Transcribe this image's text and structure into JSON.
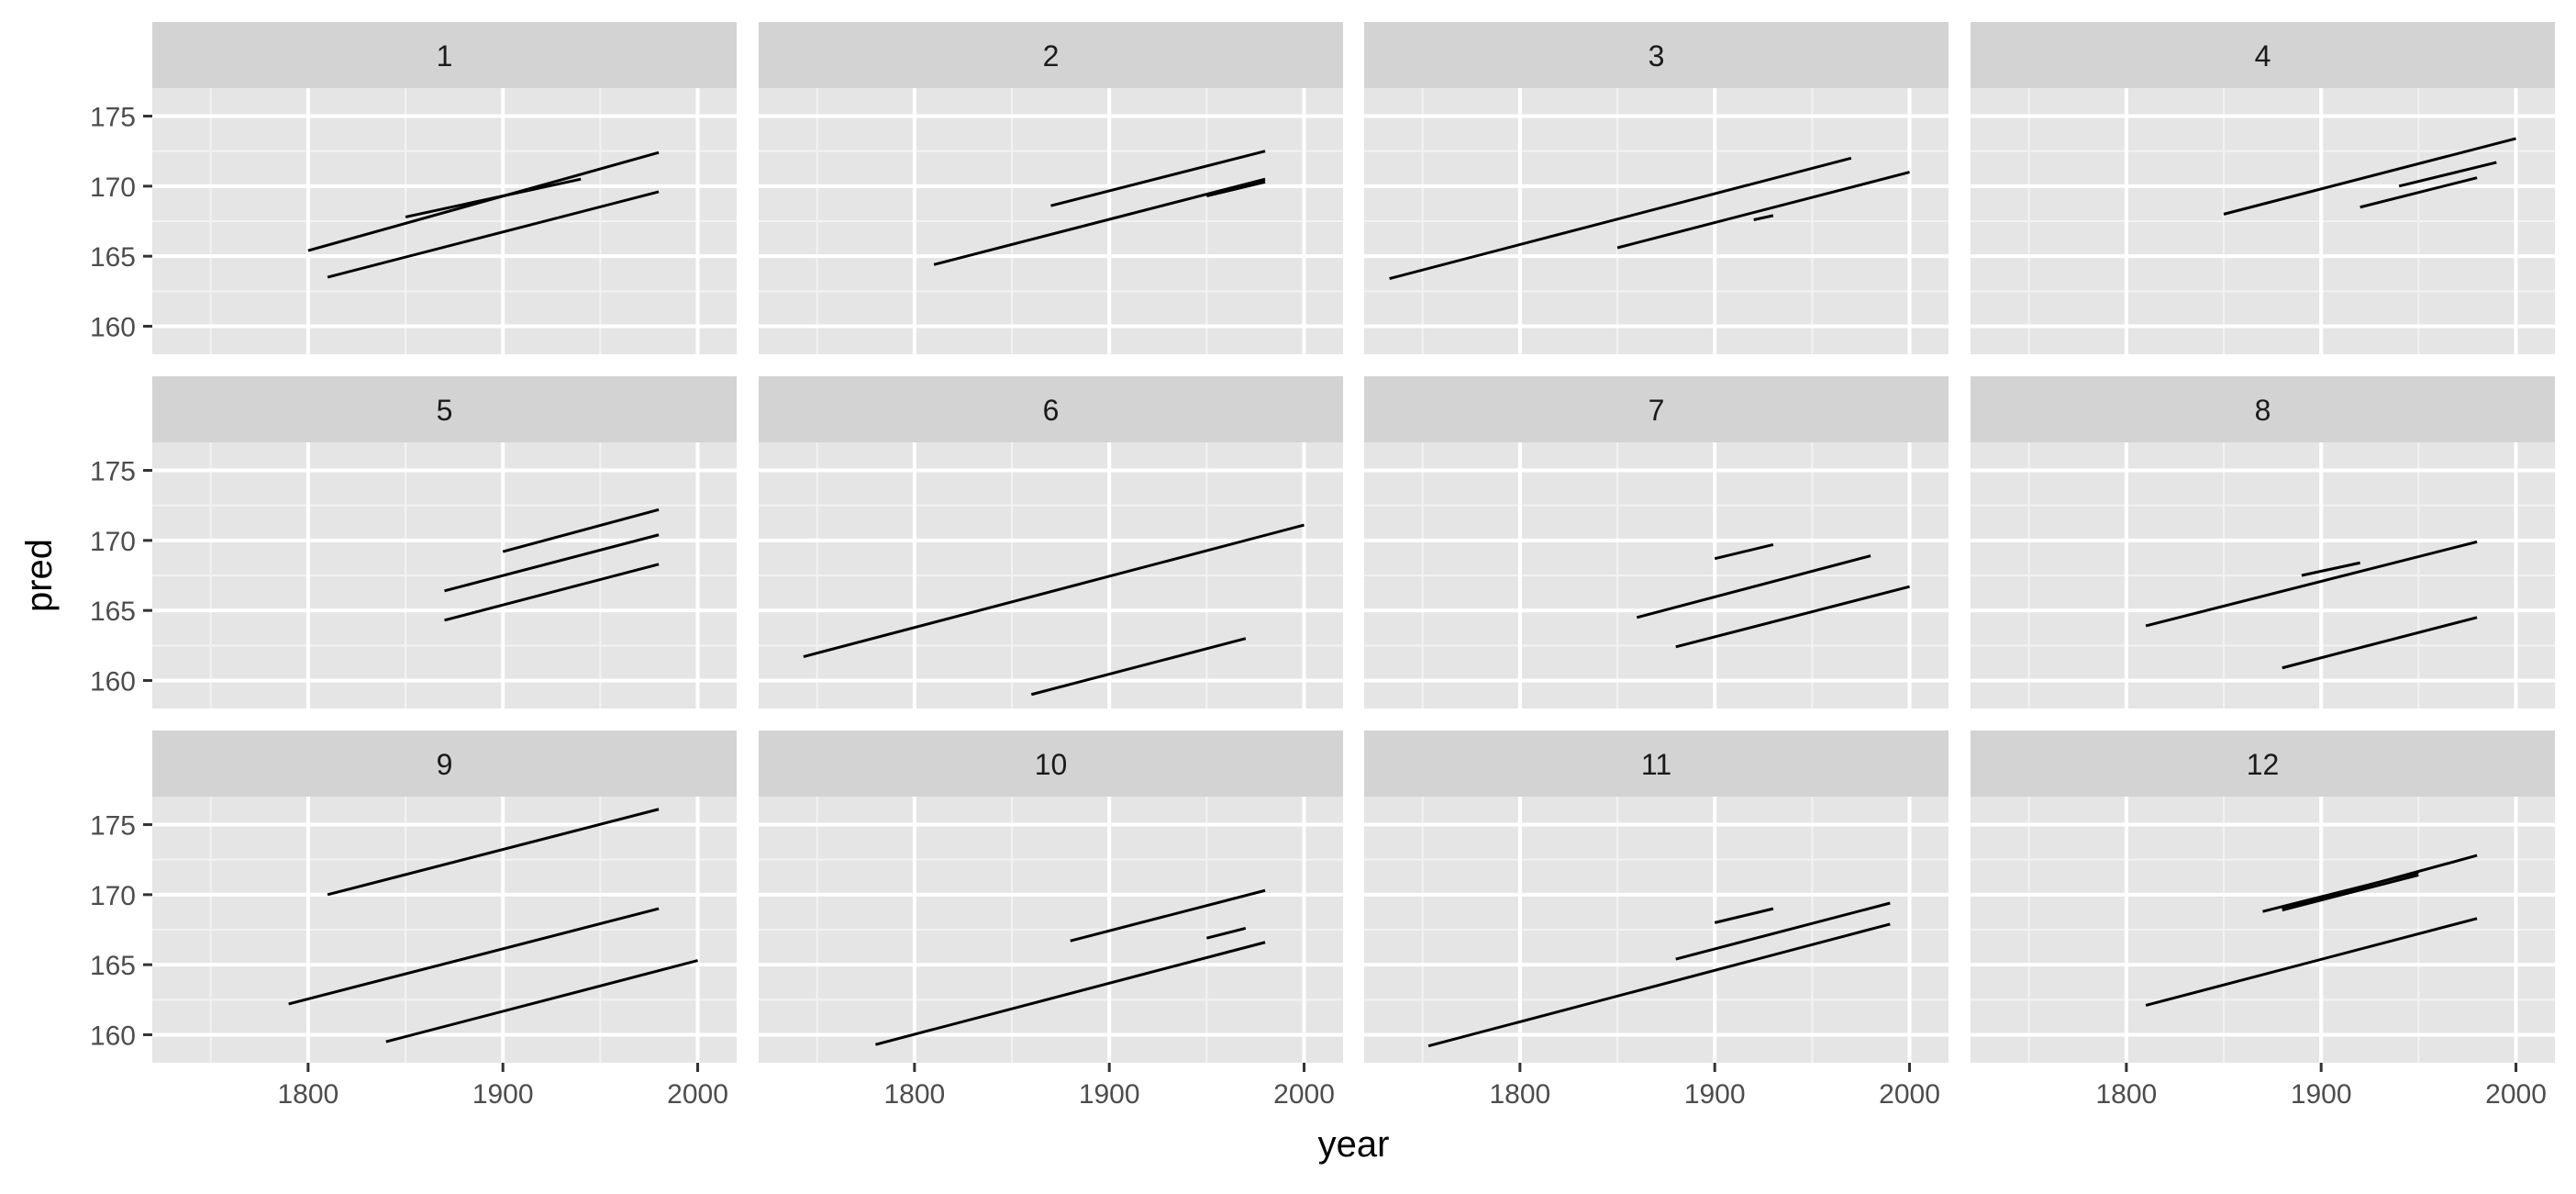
{
  "chart_data": {
    "type": "line",
    "xlabel": "year",
    "ylabel": "pred",
    "xlim": [
      1720,
      2020
    ],
    "ylim": [
      158,
      177
    ],
    "x_ticks": [
      1800,
      1900,
      2000
    ],
    "y_ticks": [
      160,
      165,
      170,
      175
    ],
    "grid": true,
    "panel_background": "#e5e5e5",
    "strip_background": "#d3d3d3",
    "line_color": "#000000",
    "panels": [
      {
        "label": "1",
        "segments": [
          {
            "x": [
              1800,
              1980
            ],
            "y": [
              165.4,
              172.4
            ]
          },
          {
            "x": [
              1850,
              1940
            ],
            "y": [
              167.8,
              170.5
            ]
          },
          {
            "x": [
              1810,
              1980
            ],
            "y": [
              163.5,
              169.6
            ]
          }
        ]
      },
      {
        "label": "2",
        "segments": [
          {
            "x": [
              1870,
              1980
            ],
            "y": [
              168.6,
              172.5
            ]
          },
          {
            "x": [
              1810,
              1980
            ],
            "y": [
              164.4,
              170.5
            ]
          },
          {
            "x": [
              1950,
              1980
            ],
            "y": [
              169.3,
              170.3
            ]
          }
        ]
      },
      {
        "label": "3",
        "segments": [
          {
            "x": [
              1733,
              1970
            ],
            "y": [
              163.4,
              172.0
            ]
          },
          {
            "x": [
              1850,
              2000
            ],
            "y": [
              165.6,
              171.0
            ]
          },
          {
            "x": [
              1920,
              1930
            ],
            "y": [
              167.6,
              167.9
            ]
          }
        ]
      },
      {
        "label": "4",
        "segments": [
          {
            "x": [
              1850,
              2000
            ],
            "y": [
              168.0,
              173.4
            ]
          },
          {
            "x": [
              1940,
              1990
            ],
            "y": [
              170.0,
              171.7
            ]
          },
          {
            "x": [
              1920,
              1980
            ],
            "y": [
              168.5,
              170.6
            ]
          }
        ]
      },
      {
        "label": "5",
        "segments": [
          {
            "x": [
              1900,
              1980
            ],
            "y": [
              169.2,
              172.2
            ]
          },
          {
            "x": [
              1870,
              1980
            ],
            "y": [
              166.4,
              170.4
            ]
          },
          {
            "x": [
              1870,
              1980
            ],
            "y": [
              164.3,
              168.3
            ]
          }
        ]
      },
      {
        "label": "6",
        "segments": [
          {
            "x": [
              1743,
              2000
            ],
            "y": [
              161.7,
              171.1
            ]
          },
          {
            "x": [
              1860,
              1970
            ],
            "y": [
              159.0,
              163.0
            ]
          }
        ]
      },
      {
        "label": "7",
        "segments": [
          {
            "x": [
              1900,
              1930
            ],
            "y": [
              168.7,
              169.7
            ]
          },
          {
            "x": [
              1860,
              1980
            ],
            "y": [
              164.5,
              168.9
            ]
          },
          {
            "x": [
              1880,
              2000
            ],
            "y": [
              162.4,
              166.7
            ]
          }
        ]
      },
      {
        "label": "8",
        "segments": [
          {
            "x": [
              1890,
              1920
            ],
            "y": [
              167.5,
              168.4
            ]
          },
          {
            "x": [
              1810,
              1980
            ],
            "y": [
              163.9,
              169.9
            ]
          },
          {
            "x": [
              1880,
              1980
            ],
            "y": [
              160.9,
              164.5
            ]
          }
        ]
      },
      {
        "label": "9",
        "segments": [
          {
            "x": [
              1810,
              1980
            ],
            "y": [
              170.0,
              176.1
            ]
          },
          {
            "x": [
              1790,
              1980
            ],
            "y": [
              162.2,
              169.0
            ]
          },
          {
            "x": [
              1840,
              2000
            ],
            "y": [
              159.5,
              165.3
            ]
          }
        ]
      },
      {
        "label": "10",
        "segments": [
          {
            "x": [
              1880,
              1980
            ],
            "y": [
              166.7,
              170.3
            ]
          },
          {
            "x": [
              1950,
              1970
            ],
            "y": [
              166.9,
              167.6
            ]
          },
          {
            "x": [
              1780,
              1980
            ],
            "y": [
              159.3,
              166.6
            ]
          }
        ]
      },
      {
        "label": "11",
        "segments": [
          {
            "x": [
              1900,
              1930
            ],
            "y": [
              168.0,
              169.0
            ]
          },
          {
            "x": [
              1880,
              1990
            ],
            "y": [
              165.4,
              169.4
            ]
          },
          {
            "x": [
              1753,
              1990
            ],
            "y": [
              159.2,
              167.9
            ]
          }
        ]
      },
      {
        "label": "12",
        "segments": [
          {
            "x": [
              1870,
              1950
            ],
            "y": [
              168.8,
              171.6
            ]
          },
          {
            "x": [
              1880,
              1980
            ],
            "y": [
              169.0,
              172.8
            ]
          },
          {
            "x": [
              1880,
              1950
            ],
            "y": [
              168.9,
              171.4
            ]
          },
          {
            "x": [
              1810,
              1980
            ],
            "y": [
              162.1,
              168.3
            ]
          }
        ]
      }
    ]
  }
}
